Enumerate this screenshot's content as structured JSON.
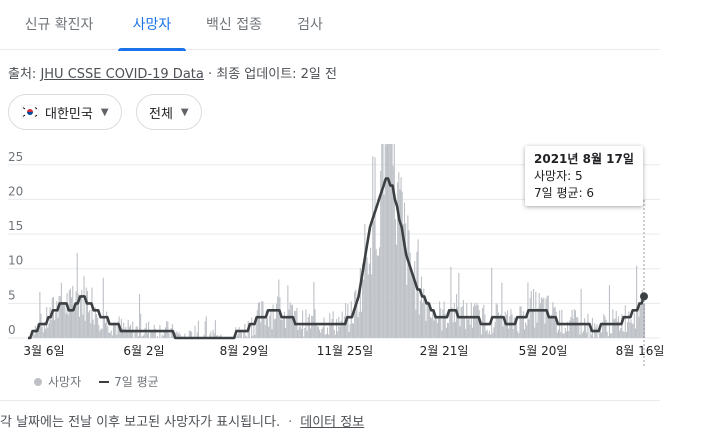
{
  "tabs": [
    {
      "label": "신규 확진자"
    },
    {
      "label": "사망자"
    },
    {
      "label": "백신 접종"
    },
    {
      "label": "검사"
    }
  ],
  "source": {
    "prefix": "출처: ",
    "link": "JHU CSSE COVID-19 Data",
    "suffix": " · 최종 업데이트: 2일 전"
  },
  "filters": {
    "country": "대한민국",
    "region": "전체",
    "flag_icon": "south-korea-flag-icon",
    "caret_icon": "caret-down-icon"
  },
  "tooltip": {
    "date": "2021년 8월 17일",
    "deaths_line": "사망자: 5",
    "avg_line": "7일 평균: 6"
  },
  "legend": {
    "deaths": "사망자",
    "avg": "7일 평균"
  },
  "footer": {
    "note": "각 날짜에는 전날 이후 보고된 사망자가 표시됩니다.",
    "separator": "·",
    "link": "데이터 정보"
  },
  "colors": {
    "accent": "#1a73e8",
    "bars": "#bdc1c6",
    "avg_line": "#3c4043"
  },
  "chart_data": {
    "type": "bar",
    "title": "",
    "xlabel": "",
    "ylabel": "",
    "ylim": [
      0,
      28
    ],
    "y_ticks": [
      "0",
      "5",
      "10",
      "15",
      "20",
      "25"
    ],
    "x_ticks": [
      "3월 6일",
      "6월 2일",
      "8월 29일",
      "11월 25일",
      "2월 21일",
      "5월 20일",
      "8월 16일"
    ],
    "x_range": [
      "2020-02-20",
      "2021-08-17"
    ],
    "series": [
      {
        "name": "7일 평균",
        "kind": "line",
        "points": [
          [
            "2020-02-20",
            0
          ],
          [
            "2020-02-25",
            1
          ],
          [
            "2020-03-06",
            2
          ],
          [
            "2020-03-15",
            4
          ],
          [
            "2020-03-22",
            5
          ],
          [
            "2020-03-30",
            4
          ],
          [
            "2020-04-06",
            6
          ],
          [
            "2020-04-15",
            5
          ],
          [
            "2020-04-25",
            3
          ],
          [
            "2020-05-05",
            2
          ],
          [
            "2020-05-15",
            1
          ],
          [
            "2020-06-02",
            1
          ],
          [
            "2020-06-20",
            1
          ],
          [
            "2020-07-05",
            0
          ],
          [
            "2020-07-25",
            0
          ],
          [
            "2020-08-15",
            0
          ],
          [
            "2020-08-29",
            1
          ],
          [
            "2020-09-05",
            2
          ],
          [
            "2020-09-12",
            3
          ],
          [
            "2020-09-25",
            4
          ],
          [
            "2020-10-05",
            3
          ],
          [
            "2020-10-20",
            2
          ],
          [
            "2020-11-05",
            2
          ],
          [
            "2020-11-25",
            2
          ],
          [
            "2020-12-01",
            3
          ],
          [
            "2020-12-08",
            6
          ],
          [
            "2020-12-14",
            12
          ],
          [
            "2020-12-19",
            17
          ],
          [
            "2020-12-24",
            19
          ],
          [
            "2020-12-29",
            21
          ],
          [
            "2021-01-02",
            23
          ],
          [
            "2021-01-07",
            22
          ],
          [
            "2021-01-12",
            18
          ],
          [
            "2021-01-18",
            13
          ],
          [
            "2021-01-24",
            9
          ],
          [
            "2021-01-30",
            7
          ],
          [
            "2021-02-06",
            5
          ],
          [
            "2021-02-14",
            3
          ],
          [
            "2021-02-21",
            3
          ],
          [
            "2021-03-01",
            4
          ],
          [
            "2021-03-10",
            3
          ],
          [
            "2021-03-20",
            3
          ],
          [
            "2021-03-30",
            2
          ],
          [
            "2021-04-10",
            3
          ],
          [
            "2021-04-20",
            2
          ],
          [
            "2021-05-01",
            3
          ],
          [
            "2021-05-10",
            4
          ],
          [
            "2021-05-20",
            4
          ],
          [
            "2021-05-28",
            3
          ],
          [
            "2021-06-05",
            2
          ],
          [
            "2021-06-15",
            2
          ],
          [
            "2021-06-25",
            2
          ],
          [
            "2021-07-05",
            1
          ],
          [
            "2021-07-15",
            2
          ],
          [
            "2021-07-25",
            2
          ],
          [
            "2021-08-02",
            3
          ],
          [
            "2021-08-10",
            4
          ],
          [
            "2021-08-17",
            6
          ]
        ]
      }
    ],
    "bars_summary": {
      "name": "사망자",
      "peak_value": 28,
      "peak_date": "2020-12-29",
      "last_value": 5,
      "last_date": "2021-08-17"
    }
  }
}
